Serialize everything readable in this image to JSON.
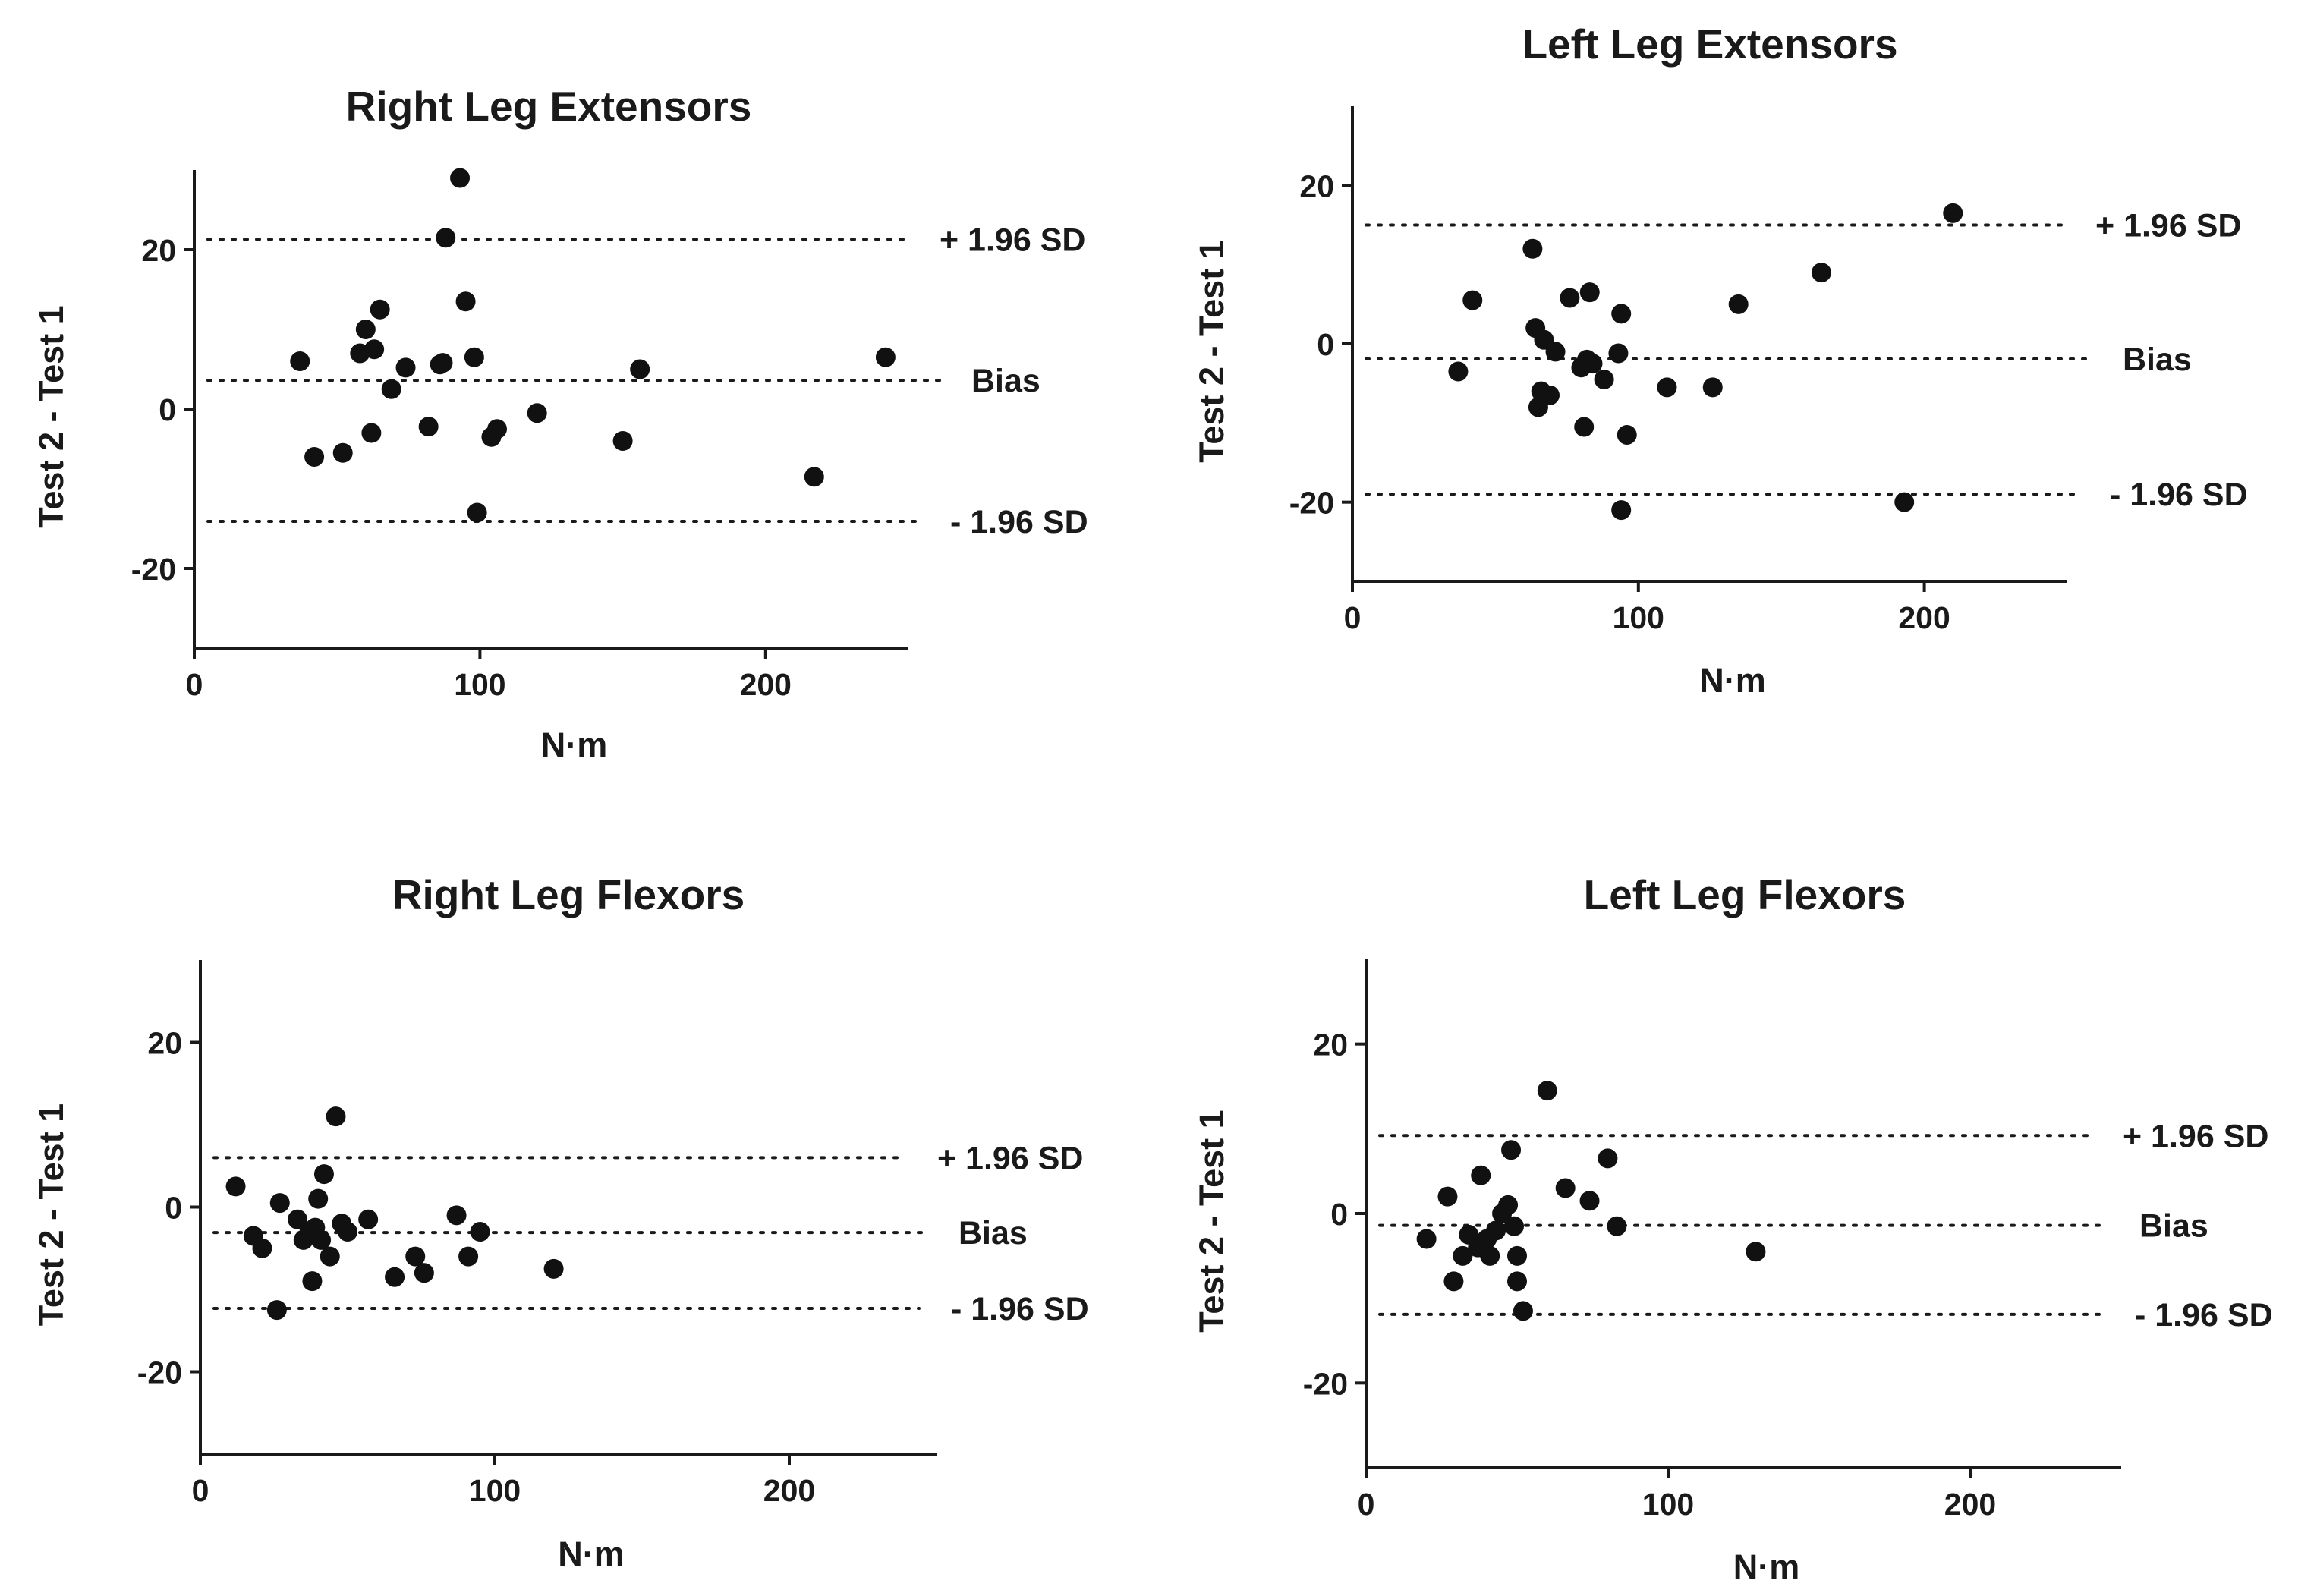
{
  "chart_data": [
    {
      "type": "scatter",
      "title": "Right Leg Extensors",
      "xlabel": "N·m",
      "ylabel": "Test 2 - Test 1",
      "xlim": [
        0,
        250
      ],
      "ylim": [
        -30,
        30
      ],
      "xticks": [
        0,
        100,
        200
      ],
      "yticks": [
        -20,
        0,
        20
      ],
      "grid": false,
      "reference_lines": [
        {
          "name": "+ 1.96 SD",
          "y": 21.3
        },
        {
          "name": "Bias",
          "y": 3.6
        },
        {
          "name": "- 1.96 SD",
          "y": -14.1
        }
      ],
      "points": [
        [
          37,
          6
        ],
        [
          42,
          -6
        ],
        [
          52,
          -5.5
        ],
        [
          58,
          7
        ],
        [
          60,
          10
        ],
        [
          62,
          -3
        ],
        [
          63,
          7.5
        ],
        [
          65,
          12.5
        ],
        [
          69,
          2.5
        ],
        [
          74,
          5.2
        ],
        [
          82,
          -2.2
        ],
        [
          86,
          5.6
        ],
        [
          87,
          5.8
        ],
        [
          88,
          21.5
        ],
        [
          93,
          29
        ],
        [
          95,
          13.5
        ],
        [
          98,
          6.5
        ],
        [
          99,
          -13
        ],
        [
          104,
          -3.5
        ],
        [
          106,
          -2.5
        ],
        [
          120,
          -0.5
        ],
        [
          150,
          -4
        ],
        [
          156,
          5
        ],
        [
          217,
          -8.5
        ],
        [
          242,
          6.5
        ]
      ]
    },
    {
      "type": "scatter",
      "title": "Left Leg Extensors",
      "xlabel": "N·m",
      "ylabel": "Test 2 - Test 1",
      "xlim": [
        0,
        250
      ],
      "ylim": [
        -30,
        30
      ],
      "xticks": [
        0,
        100,
        200
      ],
      "yticks": [
        -20,
        0,
        20
      ],
      "grid": false,
      "reference_lines": [
        {
          "name": "+ 1.96 SD",
          "y": 15
        },
        {
          "name": "Bias",
          "y": -1.9
        },
        {
          "name": "- 1.96 SD",
          "y": -19
        }
      ],
      "points": [
        [
          37,
          -3.5
        ],
        [
          42,
          5.5
        ],
        [
          63,
          12
        ],
        [
          64,
          2
        ],
        [
          65,
          -8
        ],
        [
          66,
          -6
        ],
        [
          67,
          0.5
        ],
        [
          69,
          -6.5
        ],
        [
          71,
          -1
        ],
        [
          76,
          5.8
        ],
        [
          80,
          -3
        ],
        [
          81,
          -10.5
        ],
        [
          82,
          -2
        ],
        [
          83,
          6.5
        ],
        [
          84,
          -2.5
        ],
        [
          88,
          -4.5
        ],
        [
          93,
          -1.2
        ],
        [
          94,
          3.8
        ],
        [
          94,
          -21
        ],
        [
          96,
          -11.5
        ],
        [
          110,
          -5.5
        ],
        [
          126,
          -5.5
        ],
        [
          135,
          5
        ],
        [
          164,
          9
        ],
        [
          193,
          -20
        ],
        [
          210,
          16.5
        ]
      ]
    },
    {
      "type": "scatter",
      "title": "Right Leg Flexors",
      "xlabel": "N·m",
      "ylabel": "Test 2 - Test 1",
      "xlim": [
        0,
        250
      ],
      "ylim": [
        -30,
        30
      ],
      "xticks": [
        0,
        100,
        200
      ],
      "yticks": [
        -20,
        0,
        20
      ],
      "grid": false,
      "reference_lines": [
        {
          "name": "+ 1.96 SD",
          "y": 6
        },
        {
          "name": "Bias",
          "y": -3.1
        },
        {
          "name": "- 1.96 SD",
          "y": -12.3
        }
      ],
      "points": [
        [
          12,
          2.5
        ],
        [
          18,
          -3.5
        ],
        [
          21,
          -5
        ],
        [
          26,
          -12.5
        ],
        [
          27,
          0.5
        ],
        [
          33,
          -1.5
        ],
        [
          35,
          -4
        ],
        [
          37,
          -3
        ],
        [
          38,
          -9
        ],
        [
          39,
          -2.5
        ],
        [
          40,
          1
        ],
        [
          41,
          -4
        ],
        [
          42,
          4
        ],
        [
          44,
          -6
        ],
        [
          46,
          11
        ],
        [
          48,
          -2
        ],
        [
          50,
          -3
        ],
        [
          57,
          -1.5
        ],
        [
          66,
          -8.5
        ],
        [
          73,
          -6
        ],
        [
          76,
          -8
        ],
        [
          87,
          -1
        ],
        [
          91,
          -6
        ],
        [
          95,
          -3
        ],
        [
          120,
          -7.5
        ]
      ]
    },
    {
      "type": "scatter",
      "title": "Left Leg Flexors",
      "xlabel": "N·m",
      "ylabel": "Test 2 - Test 1",
      "xlim": [
        0,
        250
      ],
      "ylim": [
        -30,
        30
      ],
      "xticks": [
        0,
        100,
        200
      ],
      "yticks": [
        -20,
        0,
        20
      ],
      "grid": false,
      "reference_lines": [
        {
          "name": "+ 1.96 SD",
          "y": 9.2
        },
        {
          "name": "Bias",
          "y": -1.4
        },
        {
          "name": "- 1.96 SD",
          "y": -11.9
        }
      ],
      "points": [
        [
          20,
          -3
        ],
        [
          27,
          2
        ],
        [
          29,
          -8
        ],
        [
          32,
          -5
        ],
        [
          34,
          -2.5
        ],
        [
          37,
          -4
        ],
        [
          38,
          4.5
        ],
        [
          40,
          -3
        ],
        [
          41,
          -5
        ],
        [
          43,
          -2
        ],
        [
          45,
          0
        ],
        [
          47,
          1
        ],
        [
          48,
          7.5
        ],
        [
          49,
          -1.5
        ],
        [
          50,
          -5
        ],
        [
          50,
          -8
        ],
        [
          52,
          -11.5
        ],
        [
          60,
          14.5
        ],
        [
          66,
          3
        ],
        [
          74,
          1.5
        ],
        [
          80,
          6.5
        ],
        [
          83,
          -1.5
        ],
        [
          129,
          -4.5
        ]
      ]
    }
  ]
}
